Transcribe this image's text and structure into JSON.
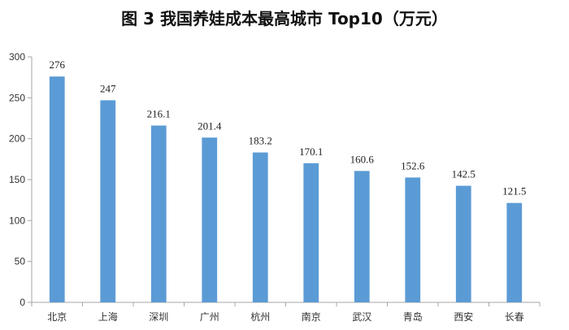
{
  "chart_data": {
    "type": "bar",
    "title": "图 3   我国养娃成本最高城市 Top10（万元）",
    "categories": [
      "北京",
      "上海",
      "深圳",
      "广州",
      "杭州",
      "南京",
      "武汉",
      "青岛",
      "西安",
      "长春"
    ],
    "values": [
      276,
      247,
      216.1,
      201.4,
      183.2,
      170.1,
      160.6,
      152.6,
      142.5,
      121.5
    ],
    "data_labels": [
      "276",
      "247",
      "216.1",
      "201.4",
      "183.2",
      "170.1",
      "160.6",
      "152.6",
      "142.5",
      "121.5"
    ],
    "yticks": [
      0,
      50,
      100,
      150,
      200,
      250,
      300
    ],
    "ylim": [
      0,
      300
    ],
    "grid": false,
    "legend": "none",
    "bar_color": "#5B9BD5",
    "axis_color": "#A6A6A6"
  }
}
